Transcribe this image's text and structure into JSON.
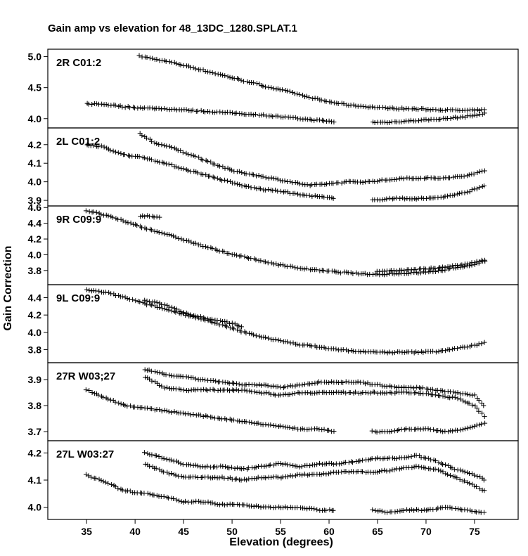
{
  "title": "Gain amp vs elevation for 48_13DC_1280.SPLAT.1",
  "chart_data": [
    {
      "type": "scatter",
      "label": "2R C01:2",
      "ylim": [
        3.85,
        5.12
      ],
      "yticks": [
        4.0,
        4.5,
        5.0
      ],
      "series": [
        {
          "points": [
            [
              40.5,
              5.01
            ],
            [
              42,
              4.96
            ],
            [
              44,
              4.9
            ],
            [
              46,
              4.82
            ],
            [
              48,
              4.74
            ],
            [
              50,
              4.66
            ],
            [
              52,
              4.58
            ],
            [
              54,
              4.5
            ],
            [
              56,
              4.43
            ],
            [
              58,
              4.34
            ],
            [
              60,
              4.27
            ],
            [
              62,
              4.22
            ],
            [
              64,
              4.19
            ],
            [
              66,
              4.17
            ],
            [
              68,
              4.16
            ],
            [
              70,
              4.15
            ],
            [
              72,
              4.14
            ],
            [
              74,
              4.13
            ],
            [
              76,
              4.14
            ]
          ]
        },
        {
          "points": [
            [
              35,
              4.24
            ],
            [
              37,
              4.23
            ],
            [
              39,
              4.19
            ],
            [
              41,
              4.17
            ],
            [
              43,
              4.16
            ],
            [
              45,
              4.14
            ],
            [
              47,
              4.12
            ],
            [
              49,
              4.1
            ],
            [
              51,
              4.08
            ],
            [
              53,
              4.06
            ],
            [
              55,
              4.03
            ],
            [
              57,
              4.0
            ],
            [
              59,
              3.97
            ],
            [
              60.5,
              3.95
            ]
          ]
        },
        {
          "points": [
            [
              64.5,
              3.94
            ],
            [
              66,
              3.94
            ],
            [
              68,
              3.96
            ],
            [
              70,
              3.98
            ],
            [
              72,
              4.0
            ],
            [
              74,
              4.03
            ],
            [
              76,
              4.08
            ]
          ]
        }
      ]
    },
    {
      "type": "scatter",
      "label": "2L C01:2",
      "ylim": [
        3.87,
        4.29
      ],
      "yticks": [
        3.9,
        4.0,
        4.1,
        4.2
      ],
      "series": [
        {
          "points": [
            [
              40.5,
              4.26
            ],
            [
              42,
              4.21
            ],
            [
              44,
              4.18
            ],
            [
              46,
              4.14
            ],
            [
              48,
              4.1
            ],
            [
              50,
              4.06
            ],
            [
              52,
              4.04
            ],
            [
              54,
              4.02
            ],
            [
              56,
              4.0
            ],
            [
              58,
              3.98
            ],
            [
              60,
              3.99
            ],
            [
              62,
              4.0
            ],
            [
              64,
              4.0
            ],
            [
              66,
              4.01
            ],
            [
              68,
              4.02
            ],
            [
              70,
              4.02
            ],
            [
              72,
              4.02
            ],
            [
              74,
              4.03
            ],
            [
              76,
              4.06
            ]
          ]
        },
        {
          "points": [
            [
              35,
              4.2
            ],
            [
              36.5,
              4.19
            ],
            [
              38,
              4.16
            ],
            [
              39.5,
              4.14
            ],
            [
              41,
              4.13
            ],
            [
              43,
              4.1
            ],
            [
              45,
              4.07
            ],
            [
              47,
              4.04
            ],
            [
              49,
              4.01
            ],
            [
              51,
              3.98
            ],
            [
              53,
              3.96
            ],
            [
              55,
              3.95
            ],
            [
              57,
              3.93
            ],
            [
              59,
              3.92
            ],
            [
              60.5,
              3.91
            ]
          ]
        },
        {
          "points": [
            [
              64.5,
              3.9
            ],
            [
              66,
              3.91
            ],
            [
              68,
              3.91
            ],
            [
              70,
              3.91
            ],
            [
              72,
              3.92
            ],
            [
              74,
              3.94
            ],
            [
              76,
              3.98
            ]
          ]
        }
      ]
    },
    {
      "type": "scatter",
      "label": "9R C09:9",
      "ylim": [
        3.62,
        4.62
      ],
      "yticks": [
        3.8,
        4.0,
        4.2,
        4.4,
        4.6
      ],
      "series": [
        {
          "points": [
            [
              35,
              4.56
            ],
            [
              37,
              4.5
            ],
            [
              39,
              4.42
            ],
            [
              41,
              4.34
            ],
            [
              43,
              4.27
            ],
            [
              45,
              4.19
            ],
            [
              47,
              4.11
            ],
            [
              49,
              4.04
            ],
            [
              51,
              3.98
            ],
            [
              53,
              3.92
            ],
            [
              55,
              3.87
            ],
            [
              57,
              3.83
            ],
            [
              59,
              3.8
            ],
            [
              61,
              3.78
            ],
            [
              63,
              3.76
            ],
            [
              65,
              3.75
            ],
            [
              67,
              3.76
            ],
            [
              69,
              3.77
            ],
            [
              71,
              3.79
            ],
            [
              73,
              3.83
            ],
            [
              75,
              3.88
            ],
            [
              76,
              3.92
            ]
          ]
        },
        {
          "points": [
            [
              65,
              3.79
            ],
            [
              67,
              3.8
            ],
            [
              69,
              3.81
            ],
            [
              71,
              3.83
            ],
            [
              73,
              3.86
            ],
            [
              75,
              3.9
            ],
            [
              76,
              3.93
            ]
          ]
        },
        {
          "points": [
            [
              40.5,
              4.49
            ],
            [
              41.5,
              4.49
            ],
            [
              42.5,
              4.47
            ]
          ]
        }
      ]
    },
    {
      "type": "scatter",
      "label": "9L C09:9",
      "ylim": [
        3.65,
        4.55
      ],
      "yticks": [
        3.8,
        4.0,
        4.2,
        4.4
      ],
      "series": [
        {
          "points": [
            [
              35,
              4.49
            ],
            [
              37,
              4.46
            ],
            [
              39,
              4.4
            ],
            [
              41,
              4.33
            ],
            [
              43,
              4.27
            ],
            [
              45,
              4.21
            ],
            [
              47,
              4.15
            ],
            [
              49,
              4.08
            ],
            [
              51,
              4.01
            ],
            [
              53,
              3.95
            ],
            [
              55,
              3.9
            ],
            [
              57,
              3.86
            ],
            [
              59,
              3.83
            ],
            [
              61,
              3.8
            ],
            [
              63,
              3.78
            ],
            [
              65,
              3.77
            ],
            [
              67,
              3.77
            ],
            [
              69,
              3.77
            ],
            [
              71,
              3.78
            ],
            [
              73,
              3.81
            ],
            [
              75,
              3.85
            ],
            [
              76,
              3.88
            ]
          ]
        },
        {
          "points": [
            [
              41,
              4.37
            ],
            [
              43,
              4.32
            ],
            [
              45,
              4.23
            ],
            [
              47,
              4.17
            ],
            [
              49,
              4.13
            ],
            [
              51,
              4.07
            ]
          ]
        }
      ]
    },
    {
      "type": "scatter",
      "label": "27R W03;27",
      "ylim": [
        3.665,
        3.965
      ],
      "yticks": [
        3.7,
        3.8,
        3.9
      ],
      "series": [
        {
          "points": [
            [
              35,
              3.86
            ],
            [
              37,
              3.83
            ],
            [
              39,
              3.8
            ],
            [
              41,
              3.79
            ],
            [
              43,
              3.78
            ],
            [
              45,
              3.77
            ],
            [
              47,
              3.76
            ],
            [
              49,
              3.75
            ],
            [
              51,
              3.74
            ],
            [
              53,
              3.73
            ],
            [
              55,
              3.72
            ],
            [
              57,
              3.71
            ],
            [
              59,
              3.71
            ],
            [
              60.5,
              3.7
            ]
          ]
        },
        {
          "points": [
            [
              64.5,
              3.7
            ],
            [
              66,
              3.7
            ],
            [
              68,
              3.71
            ],
            [
              70,
              3.71
            ],
            [
              72,
              3.7
            ],
            [
              74,
              3.71
            ],
            [
              76,
              3.73
            ]
          ]
        },
        {
          "points": [
            [
              41,
              3.94
            ],
            [
              43,
              3.92
            ],
            [
              45,
              3.91
            ],
            [
              47,
              3.9
            ],
            [
              49,
              3.89
            ],
            [
              51,
              3.88
            ],
            [
              53,
              3.88
            ],
            [
              55,
              3.87
            ],
            [
              57,
              3.88
            ],
            [
              59,
              3.89
            ],
            [
              61,
              3.89
            ],
            [
              63,
              3.89
            ],
            [
              65,
              3.88
            ],
            [
              67,
              3.87
            ],
            [
              69,
              3.87
            ],
            [
              71,
              3.86
            ],
            [
              73,
              3.85
            ],
            [
              75,
              3.84
            ],
            [
              76,
              3.8
            ]
          ]
        },
        {
          "points": [
            [
              41,
              3.91
            ],
            [
              43,
              3.87
            ],
            [
              45,
              3.86
            ],
            [
              47,
              3.86
            ],
            [
              49,
              3.86
            ],
            [
              51,
              3.86
            ],
            [
              53,
              3.85
            ],
            [
              55,
              3.84
            ],
            [
              57,
              3.85
            ],
            [
              59,
              3.85
            ],
            [
              61,
              3.85
            ],
            [
              63,
              3.85
            ],
            [
              65,
              3.85
            ],
            [
              67,
              3.85
            ],
            [
              69,
              3.85
            ],
            [
              71,
              3.84
            ],
            [
              73,
              3.83
            ],
            [
              75,
              3.8
            ],
            [
              76,
              3.76
            ]
          ]
        }
      ]
    },
    {
      "type": "scatter",
      "label": "27L W03:27",
      "ylim": [
        3.955,
        4.245
      ],
      "yticks": [
        4.0,
        4.1,
        4.2
      ],
      "series": [
        {
          "points": [
            [
              35,
              4.12
            ],
            [
              37,
              4.09
            ],
            [
              39,
              4.06
            ],
            [
              41,
              4.05
            ],
            [
              43,
              4.04
            ],
            [
              45,
              4.02
            ],
            [
              47,
              4.02
            ],
            [
              49,
              4.01
            ],
            [
              51,
              4.01
            ],
            [
              53,
              4.0
            ],
            [
              55,
              4.0
            ],
            [
              57,
              4.0
            ],
            [
              59,
              3.99
            ],
            [
              60.5,
              3.99
            ]
          ]
        },
        {
          "points": [
            [
              64.5,
              3.99
            ],
            [
              66,
              3.98
            ],
            [
              68,
              3.99
            ],
            [
              70,
              3.99
            ],
            [
              72,
              4.0
            ],
            [
              74,
              3.99
            ],
            [
              76,
              3.98
            ]
          ]
        },
        {
          "points": [
            [
              41,
              4.2
            ],
            [
              43,
              4.18
            ],
            [
              45,
              4.16
            ],
            [
              47,
              4.15
            ],
            [
              49,
              4.15
            ],
            [
              51,
              4.14
            ],
            [
              53,
              4.15
            ],
            [
              55,
              4.16
            ],
            [
              57,
              4.15
            ],
            [
              59,
              4.16
            ],
            [
              61,
              4.16
            ],
            [
              63,
              4.17
            ],
            [
              65,
              4.18
            ],
            [
              67,
              4.18
            ],
            [
              69,
              4.19
            ],
            [
              71,
              4.17
            ],
            [
              73,
              4.14
            ],
            [
              75,
              4.12
            ],
            [
              76,
              4.1
            ]
          ]
        },
        {
          "points": [
            [
              41,
              4.16
            ],
            [
              43,
              4.13
            ],
            [
              45,
              4.11
            ],
            [
              47,
              4.11
            ],
            [
              49,
              4.11
            ],
            [
              51,
              4.1
            ],
            [
              53,
              4.11
            ],
            [
              55,
              4.11
            ],
            [
              57,
              4.12
            ],
            [
              59,
              4.12
            ],
            [
              61,
              4.13
            ],
            [
              63,
              4.13
            ],
            [
              65,
              4.13
            ],
            [
              67,
              4.14
            ],
            [
              69,
              4.15
            ],
            [
              71,
              4.14
            ],
            [
              73,
              4.11
            ],
            [
              75,
              4.08
            ],
            [
              76,
              4.06
            ]
          ]
        }
      ]
    }
  ],
  "x_axis": {
    "label": "Elevation (degrees)",
    "xlim": [
      31,
      79.5
    ],
    "ticks": [
      35,
      40,
      45,
      50,
      55,
      60,
      65,
      70,
      75
    ]
  },
  "y_axis": {
    "label": "Gain Correction"
  }
}
